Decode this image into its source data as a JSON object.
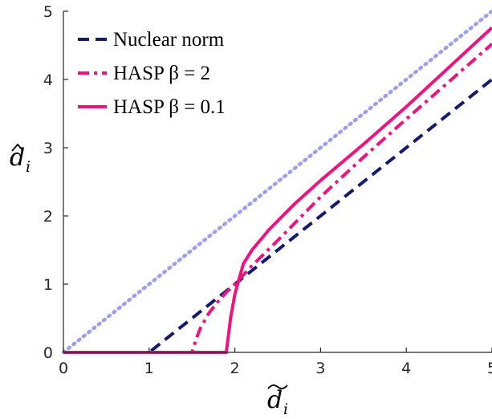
{
  "chart_data": {
    "type": "line",
    "title": "",
    "xlabel": "d_i (tilde)",
    "ylabel": "d_i (hat)",
    "xlim": [
      0,
      5
    ],
    "ylim": [
      0,
      5
    ],
    "x_ticks": [
      "0",
      "1",
      "2",
      "3",
      "4",
      "5"
    ],
    "y_ticks": [
      "0",
      "1",
      "2",
      "3",
      "4",
      "5"
    ],
    "grid": false,
    "legend_position": "top-left",
    "series": [
      {
        "name": "identity",
        "style": "dotted",
        "color": "#9b9ff0",
        "x": [
          0,
          5
        ],
        "y": [
          0,
          5
        ]
      },
      {
        "name": "Nuclear norm",
        "style": "dashed",
        "color": "#141a6e",
        "x": [
          0,
          1,
          5
        ],
        "y": [
          0,
          0,
          4
        ]
      },
      {
        "name": "HASP β = 2",
        "style": "dashdot",
        "color": "#f0127f",
        "x": [
          0,
          1.5,
          1.55,
          1.6,
          1.7,
          1.8,
          1.9,
          2.0,
          2.2,
          2.5,
          3.0,
          3.5,
          4.0,
          4.5,
          5.0
        ],
        "y": [
          0,
          0,
          0.2,
          0.36,
          0.58,
          0.74,
          0.88,
          1.0,
          1.27,
          1.64,
          2.28,
          2.86,
          3.42,
          3.97,
          4.52
        ]
      },
      {
        "name": "HASP β = 0.1",
        "style": "solid",
        "color": "#f0127f",
        "x": [
          0,
          1.9,
          1.95,
          2.0,
          2.05,
          2.1,
          2.2,
          2.4,
          2.7,
          3.0,
          3.5,
          4.0,
          4.5,
          5.0
        ],
        "y": [
          0,
          0,
          0.5,
          0.85,
          1.08,
          1.3,
          1.5,
          1.8,
          2.18,
          2.52,
          3.05,
          3.6,
          4.18,
          4.76
        ]
      }
    ]
  },
  "legend": {
    "items": [
      {
        "label": "Nuclear norm",
        "color": "#141a6e",
        "style": "dashed"
      },
      {
        "label": "HASP β = 2",
        "color": "#f0127f",
        "style": "dashdot"
      },
      {
        "label": "HASP β = 0.1",
        "color": "#f0127f",
        "style": "solid"
      }
    ]
  },
  "axis_labels": {
    "x_symbol": "d",
    "x_sub": "i",
    "y_symbol": "d",
    "y_sub": "i"
  }
}
